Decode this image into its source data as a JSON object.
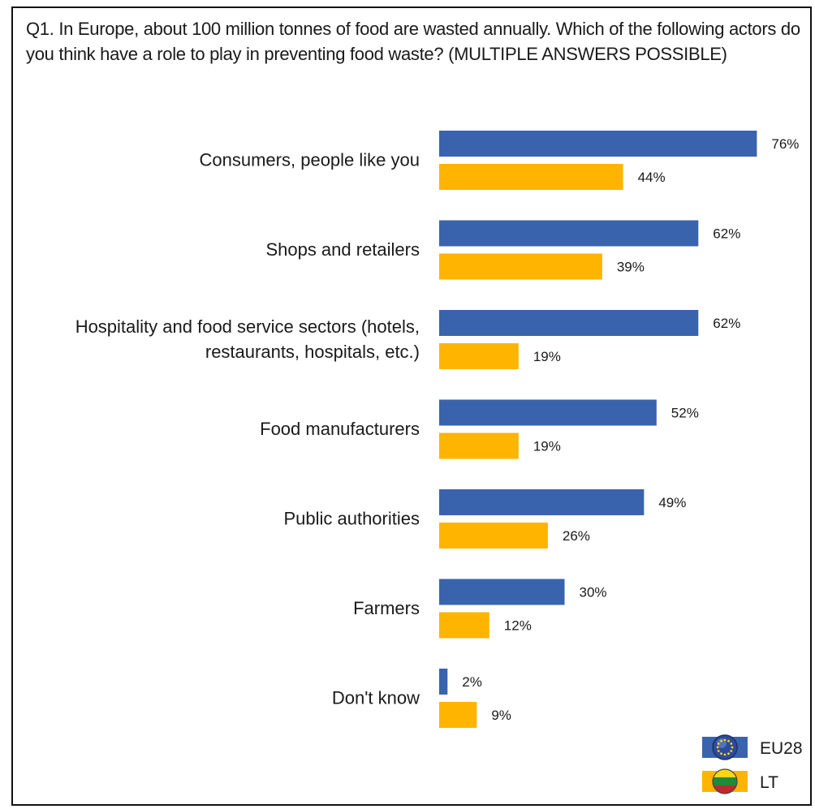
{
  "question": "Q1. In Europe, about 100 million tonnes of food are wasted annually. Which of the following actors do you think have a role to play in preventing food waste? (MULTIPLE ANSWERS POSSIBLE)",
  "colors": {
    "eu28": "#3a63ad",
    "lt": "#ffb400"
  },
  "chart_data": {
    "type": "bar",
    "orientation": "horizontal",
    "title": "",
    "xlabel": "",
    "ylabel": "",
    "categories": [
      [
        "Consumers, people like you"
      ],
      [
        "Shops and retailers"
      ],
      [
        "Hospitality and food service sectors (hotels,",
        "restaurants, hospitals, etc.)"
      ],
      [
        "Food manufacturers"
      ],
      [
        "Public authorities"
      ],
      [
        "Farmers"
      ],
      [
        "Don't know"
      ]
    ],
    "series": [
      {
        "name": "EU28",
        "values": [
          76,
          62,
          62,
          52,
          49,
          30,
          2
        ],
        "icon": "eu-flag-icon"
      },
      {
        "name": "LT",
        "values": [
          44,
          39,
          19,
          19,
          26,
          12,
          9
        ],
        "icon": "lithuania-flag-icon"
      }
    ],
    "value_suffix": "%",
    "xlim": [
      0,
      100
    ],
    "grid": false,
    "legend_position": "bottom-right"
  }
}
